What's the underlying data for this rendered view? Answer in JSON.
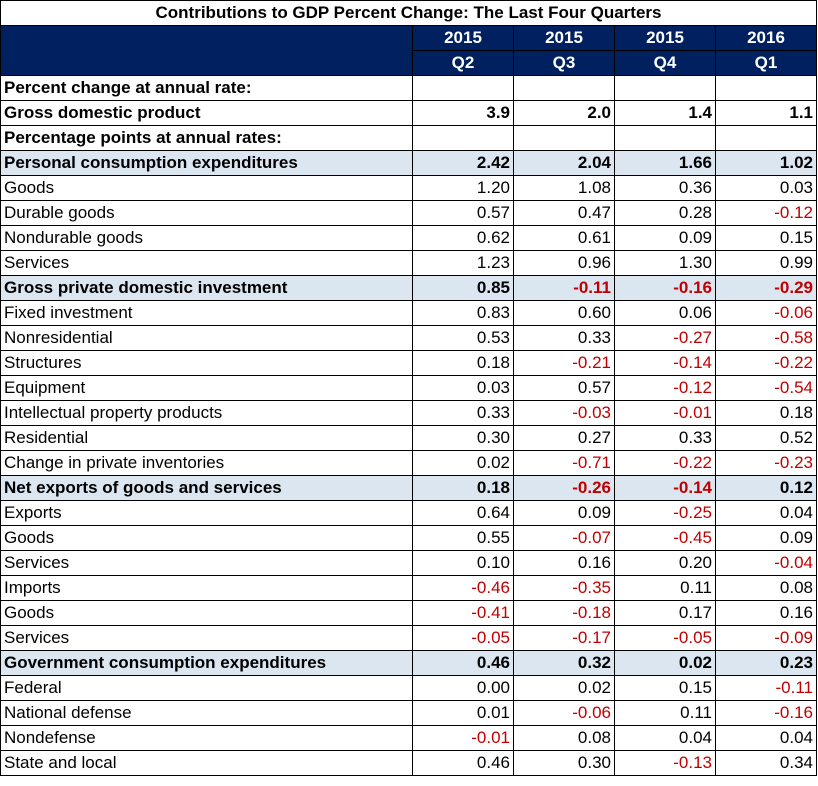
{
  "title": "Contributions to GDP Percent Change: The Last Four Quarters",
  "header": {
    "years": [
      "2015",
      "2015",
      "2015",
      "2016"
    ],
    "quarters": [
      "Q2",
      "Q3",
      "Q4",
      "Q1"
    ]
  },
  "colors": {
    "header_bg": "#002060",
    "section_bg": "#dce6f1",
    "negative": "#c00000"
  },
  "rows": [
    {
      "label": "Percent change at annual rate:",
      "values": [
        "",
        "",
        "",
        ""
      ],
      "indent": 0,
      "bold": true,
      "shaded": false
    },
    {
      "label": "Gross domestic product",
      "values": [
        "3.9",
        "2.0",
        "1.4",
        "1.1"
      ],
      "indent": "gdp",
      "bold": true,
      "shaded": false
    },
    {
      "label": "Percentage points at annual rates:",
      "values": [
        "",
        "",
        "",
        ""
      ],
      "indent": 0,
      "bold": true,
      "shaded": false
    },
    {
      "label": "Personal consumption expenditures",
      "values": [
        "2.42",
        "2.04",
        "1.66",
        "1.02"
      ],
      "indent": 0,
      "bold": true,
      "shaded": true
    },
    {
      "label": "Goods",
      "values": [
        "1.20",
        "1.08",
        "0.36",
        "0.03"
      ],
      "indent": 1,
      "bold": false,
      "shaded": false
    },
    {
      "label": "Durable goods",
      "values": [
        "0.57",
        "0.47",
        "0.28",
        "-0.12"
      ],
      "indent": 2,
      "bold": false,
      "shaded": false
    },
    {
      "label": "Nondurable goods",
      "values": [
        "0.62",
        "0.61",
        "0.09",
        "0.15"
      ],
      "indent": 2,
      "bold": false,
      "shaded": false
    },
    {
      "label": "Services",
      "values": [
        "1.23",
        "0.96",
        "1.30",
        "0.99"
      ],
      "indent": 1,
      "bold": false,
      "shaded": false
    },
    {
      "label": "Gross private domestic investment",
      "values": [
        "0.85",
        "-0.11",
        "-0.16",
        "-0.29"
      ],
      "indent": 0,
      "bold": true,
      "shaded": true
    },
    {
      "label": "Fixed investment",
      "values": [
        "0.83",
        "0.60",
        "0.06",
        "-0.06"
      ],
      "indent": 1,
      "bold": false,
      "shaded": false
    },
    {
      "label": "Nonresidential",
      "values": [
        "0.53",
        "0.33",
        "-0.27",
        "-0.58"
      ],
      "indent": 2,
      "bold": false,
      "shaded": false
    },
    {
      "label": "Structures",
      "values": [
        "0.18",
        "-0.21",
        "-0.14",
        "-0.22"
      ],
      "indent": 3,
      "bold": false,
      "shaded": false
    },
    {
      "label": "Equipment",
      "values": [
        "0.03",
        "0.57",
        "-0.12",
        "-0.54"
      ],
      "indent": 3,
      "bold": false,
      "shaded": false
    },
    {
      "label": "Intellectual property products",
      "values": [
        "0.33",
        "-0.03",
        "-0.01",
        "0.18"
      ],
      "indent": 3,
      "bold": false,
      "shaded": false
    },
    {
      "label": "Residential",
      "values": [
        "0.30",
        "0.27",
        "0.33",
        "0.52"
      ],
      "indent": 2,
      "bold": false,
      "shaded": false
    },
    {
      "label": "Change in private inventories",
      "values": [
        "0.02",
        "-0.71",
        "-0.22",
        "-0.23"
      ],
      "indent": 1,
      "bold": false,
      "shaded": false
    },
    {
      "label": "Net exports of goods and services",
      "values": [
        "0.18",
        "-0.26",
        "-0.14",
        "0.12"
      ],
      "indent": 0,
      "bold": true,
      "shaded": true
    },
    {
      "label": "Exports",
      "values": [
        "0.64",
        "0.09",
        "-0.25",
        "0.04"
      ],
      "indent": 1,
      "bold": false,
      "shaded": false
    },
    {
      "label": "Goods",
      "values": [
        "0.55",
        "-0.07",
        "-0.45",
        "0.09"
      ],
      "indent": 2,
      "bold": false,
      "shaded": false
    },
    {
      "label": "Services",
      "values": [
        "0.10",
        "0.16",
        "0.20",
        "-0.04"
      ],
      "indent": 2,
      "bold": false,
      "shaded": false
    },
    {
      "label": "Imports",
      "values": [
        "-0.46",
        "-0.35",
        "0.11",
        "0.08"
      ],
      "indent": 1,
      "bold": false,
      "shaded": false
    },
    {
      "label": "Goods",
      "values": [
        "-0.41",
        "-0.18",
        "0.17",
        "0.16"
      ],
      "indent": 2,
      "bold": false,
      "shaded": false
    },
    {
      "label": "Services",
      "values": [
        "-0.05",
        "-0.17",
        "-0.05",
        "-0.09"
      ],
      "indent": 2,
      "bold": false,
      "shaded": false
    },
    {
      "label": "Government consumption expenditures",
      "values": [
        "0.46",
        "0.32",
        "0.02",
        "0.23"
      ],
      "indent": 0,
      "bold": true,
      "shaded": true
    },
    {
      "label": "Federal",
      "values": [
        "0.00",
        "0.02",
        "0.15",
        "-0.11"
      ],
      "indent": 1,
      "bold": false,
      "shaded": false
    },
    {
      "label": "National defense",
      "values": [
        "0.01",
        "-0.06",
        "0.11",
        "-0.16"
      ],
      "indent": 2,
      "bold": false,
      "shaded": false
    },
    {
      "label": "Nondefense",
      "values": [
        "-0.01",
        "0.08",
        "0.04",
        "0.04"
      ],
      "indent": 2,
      "bold": false,
      "shaded": false
    },
    {
      "label": "State and local",
      "values": [
        "0.46",
        "0.30",
        "-0.13",
        "0.34"
      ],
      "indent": 1,
      "bold": false,
      "shaded": false
    }
  ]
}
